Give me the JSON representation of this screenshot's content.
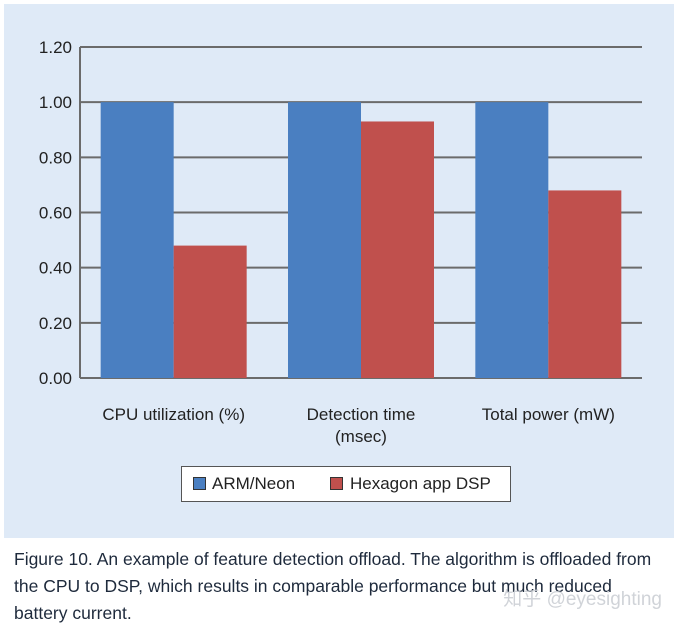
{
  "chart_data": {
    "type": "bar",
    "categories": [
      [
        "CPU utilization (%)"
      ],
      [
        "Detection time",
        "(msec)"
      ],
      [
        "Total power (mW)"
      ]
    ],
    "series": [
      {
        "name": "ARM/Neon",
        "color": "#4a7fc1",
        "values": [
          1.0,
          1.0,
          1.0
        ]
      },
      {
        "name": "Hexagon app DSP",
        "color": "#c0504d",
        "values": [
          0.48,
          0.93,
          0.68
        ]
      }
    ],
    "ylim": [
      0,
      1.2
    ],
    "yticks": [
      "0.00",
      "0.20",
      "0.40",
      "0.60",
      "0.80",
      "1.00",
      "1.20"
    ],
    "grid": true,
    "legend_position": "bottom"
  },
  "caption": {
    "text": "Figure 10. An example of feature detection offload. The algorithm is offloaded from the CPU to DSP, which results in comparable performance but much reduced battery current."
  },
  "watermark": {
    "text": "知乎 @eyesighting"
  }
}
